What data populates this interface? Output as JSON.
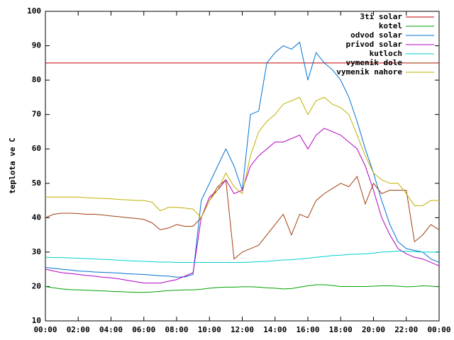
{
  "chart_data": {
    "type": "line",
    "ylabel": "teplota ve C",
    "xlim": [
      0,
      24
    ],
    "ylim": [
      10,
      100
    ],
    "yticks": [
      10,
      20,
      30,
      40,
      50,
      60,
      70,
      80,
      90,
      100
    ],
    "xticks": [
      {
        "value": 0,
        "label": "00:00"
      },
      {
        "value": 2,
        "label": "02:00"
      },
      {
        "value": 4,
        "label": "04:00"
      },
      {
        "value": 6,
        "label": "06:00"
      },
      {
        "value": 8,
        "label": "08:00"
      },
      {
        "value": 10,
        "label": "10:00"
      },
      {
        "value": 12,
        "label": "12:00"
      },
      {
        "value": 14,
        "label": "14:00"
      },
      {
        "value": 16,
        "label": "16:00"
      },
      {
        "value": 18,
        "label": "18:00"
      },
      {
        "value": 20,
        "label": "20:00"
      },
      {
        "value": 22,
        "label": "22:00"
      },
      {
        "value": 24,
        "label": "00:00"
      }
    ],
    "grid": false,
    "legend": "top-right",
    "x": [
      0,
      0.5,
      1,
      1.5,
      2,
      2.5,
      3,
      3.5,
      4,
      4.5,
      5,
      5.5,
      6,
      6.5,
      7,
      7.5,
      8,
      8.5,
      9,
      9.5,
      10,
      10.5,
      11,
      11.5,
      12,
      12.5,
      13,
      13.5,
      14,
      14.5,
      15,
      15.5,
      16,
      16.5,
      17,
      17.5,
      18,
      18.5,
      19,
      19.5,
      20,
      20.5,
      21,
      21.5,
      22,
      22.5,
      23,
      23.5,
      24
    ],
    "series": [
      {
        "name": "3ti solar",
        "color": "#c00000",
        "values": [
          85,
          85,
          85,
          85,
          85,
          85,
          85,
          85,
          85,
          85,
          85,
          85,
          85,
          85,
          85,
          85,
          85,
          85,
          85,
          85,
          85,
          85,
          85,
          85,
          85,
          85,
          85,
          85,
          85,
          85,
          85,
          85,
          85,
          85,
          85,
          85,
          85,
          85,
          85,
          85,
          85,
          85,
          85,
          85,
          85,
          85,
          85,
          85,
          85
        ]
      },
      {
        "name": "kotel",
        "color": "#00a000",
        "values": [
          20,
          19.6,
          19.3,
          19.1,
          19,
          18.9,
          18.8,
          18.7,
          18.6,
          18.5,
          18.4,
          18.3,
          18.3,
          18.4,
          18.6,
          18.8,
          18.9,
          19,
          19,
          19.2,
          19.5,
          19.7,
          19.8,
          19.8,
          19.9,
          19.9,
          19.8,
          19.6,
          19.5,
          19.3,
          19.4,
          19.8,
          20.2,
          20.5,
          20.5,
          20.3,
          20,
          20,
          20,
          20,
          20.1,
          20.2,
          20.2,
          20.1,
          19.9,
          20,
          20.2,
          20.1,
          19.9
        ]
      },
      {
        "name": "odvod solar",
        "color": "#0070d0",
        "values": [
          25.5,
          25.3,
          25,
          24.8,
          24.5,
          24.4,
          24.2,
          24.1,
          24,
          23.9,
          23.7,
          23.6,
          23.5,
          23.3,
          23.1,
          23,
          22.7,
          22.8,
          23.5,
          45,
          50,
          55,
          60,
          55,
          48,
          70,
          71,
          85,
          88,
          90,
          89,
          91,
          80,
          88,
          85,
          83,
          80,
          75,
          68,
          60,
          53,
          45,
          38,
          33,
          31,
          30.5,
          30,
          28,
          27
        ]
      },
      {
        "name": "privod solar",
        "color": "#b000c0",
        "values": [
          25,
          24.5,
          24,
          23.8,
          23.5,
          23.2,
          23,
          22.7,
          22.5,
          22.2,
          21.8,
          21.4,
          21,
          21,
          21,
          21.5,
          22,
          23,
          24,
          40,
          46,
          48,
          51,
          47,
          48,
          55,
          58,
          60,
          62,
          62,
          63,
          64,
          60,
          64,
          66,
          65,
          64,
          62,
          60,
          55,
          48,
          40,
          35,
          31,
          29.5,
          28.5,
          28,
          27,
          26
        ]
      },
      {
        "name": "kutloch",
        "color": "#00d0d0",
        "values": [
          28.5,
          28.4,
          28.4,
          28.3,
          28.2,
          28.1,
          28,
          27.9,
          27.8,
          27.6,
          27.5,
          27.4,
          27.3,
          27.2,
          27.1,
          27.1,
          27,
          27,
          27,
          27,
          27,
          27,
          27,
          27,
          27,
          27.1,
          27.2,
          27.3,
          27.5,
          27.7,
          27.8,
          28,
          28.2,
          28.5,
          28.7,
          29,
          29.1,
          29.3,
          29.4,
          29.5,
          29.7,
          30,
          30.1,
          30.3,
          30.2,
          30.1,
          30,
          30,
          29.9
        ]
      },
      {
        "name": "vymenik dole",
        "color": "#a04010",
        "values": [
          40,
          41,
          41.3,
          41.3,
          41.2,
          41,
          41,
          40.8,
          40.5,
          40.3,
          40,
          39.8,
          39.5,
          38.5,
          36.5,
          37,
          38,
          37.5,
          37.5,
          40,
          45,
          49,
          51,
          28,
          30,
          31,
          32,
          35,
          38,
          41,
          35,
          41,
          40,
          45,
          47,
          48.5,
          50,
          49,
          52,
          44,
          50,
          47,
          48,
          48,
          48,
          33,
          35,
          38,
          36.5
        ]
      },
      {
        "name": "vymenik nahore",
        "color": "#c0b000",
        "values": [
          46,
          46,
          46,
          46,
          46,
          45.8,
          45.7,
          45.6,
          45.5,
          45.3,
          45.2,
          45,
          45,
          44.5,
          42,
          43,
          43,
          42.8,
          42.5,
          40,
          45,
          48,
          53,
          49,
          47,
          58,
          65,
          68,
          70,
          73,
          74,
          75,
          70,
          74,
          75,
          73,
          72,
          70,
          64,
          58,
          53,
          51,
          50,
          50,
          47,
          43.5,
          43.5,
          45,
          45
        ]
      }
    ]
  }
}
